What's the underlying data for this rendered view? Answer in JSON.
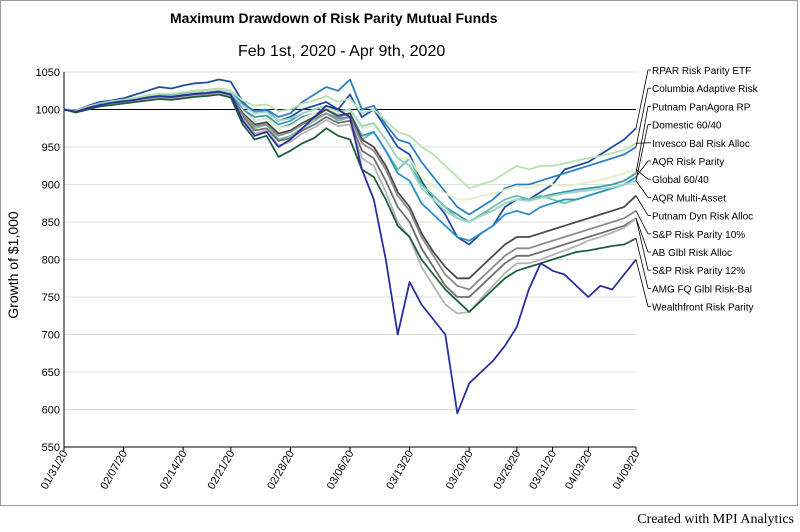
{
  "footer": {
    "credit": "Created with MPI Analytics"
  },
  "chart_data": {
    "type": "line",
    "title": "Maximum Drawdown of Risk Parity Mutual Funds",
    "subtitle": "Feb 1st, 2020 - Apr 9th, 2020",
    "xlabel": "",
    "ylabel": "Growth of $1,000",
    "ylim": [
      550,
      1050
    ],
    "yticks": [
      550,
      600,
      650,
      700,
      750,
      800,
      850,
      900,
      950,
      1000,
      1050
    ],
    "reference_line": 1000,
    "grid": "horizontal",
    "legend_placement": "right",
    "x": [
      "01/31/20",
      "02/03/20",
      "02/04/20",
      "02/05/20",
      "02/06/20",
      "02/07/20",
      "02/10/20",
      "02/11/20",
      "02/12/20",
      "02/13/20",
      "02/14/20",
      "02/18/20",
      "02/19/20",
      "02/20/20",
      "02/21/20",
      "02/24/20",
      "02/25/20",
      "02/26/20",
      "02/27/20",
      "02/28/20",
      "03/02/20",
      "03/03/20",
      "03/04/20",
      "03/05/20",
      "03/06/20",
      "03/09/20",
      "03/10/20",
      "03/11/20",
      "03/12/20",
      "03/13/20",
      "03/16/20",
      "03/17/20",
      "03/18/20",
      "03/19/20",
      "03/20/20",
      "03/23/20",
      "03/24/20",
      "03/25/20",
      "03/26/20",
      "03/27/20",
      "03/30/20",
      "03/31/20",
      "04/01/20",
      "04/02/20",
      "04/03/20",
      "04/06/20",
      "04/07/20",
      "04/08/20",
      "04/09/20"
    ],
    "xtick_labels": [
      "01/31/20",
      "02/07/20",
      "02/14/20",
      "02/21/20",
      "02/28/20",
      "03/06/20",
      "03/13/20",
      "03/20/20",
      "03/26/20",
      "03/31/20",
      "04/03/20",
      "04/09/20"
    ],
    "series": [
      {
        "name": "RPAR Risk Parity ETF",
        "color": "#1f4e9c",
        "values": [
          1000,
          999,
          1005,
          1010,
          1012,
          1015,
          1020,
          1025,
          1030,
          1028,
          1032,
          1035,
          1036,
          1040,
          1037,
          1010,
          995,
          998,
          985,
          990,
          1000,
          1005,
          1010,
          1000,
          1020,
          990,
          1000,
          975,
          950,
          940,
          905,
          880,
          860,
          830,
          820,
          835,
          845,
          870,
          880,
          880,
          890,
          900,
          920,
          925,
          930,
          940,
          950,
          960,
          975
        ]
      },
      {
        "name": "Columbia Adaptive Risk",
        "color": "#2a7fc0",
        "values": [
          1000,
          998,
          1002,
          1008,
          1010,
          1012,
          1015,
          1018,
          1020,
          1019,
          1022,
          1025,
          1026,
          1028,
          1025,
          1008,
          998,
          1000,
          990,
          995,
          1010,
          1020,
          1030,
          1025,
          1040,
          1000,
          1005,
          980,
          960,
          955,
          930,
          910,
          890,
          870,
          860,
          870,
          880,
          895,
          900,
          900,
          905,
          910,
          915,
          920,
          925,
          930,
          935,
          940,
          950
        ]
      },
      {
        "name": "Putnam PanAgora RP",
        "color": "#3e9aa8",
        "values": [
          1000,
          998,
          1003,
          1006,
          1008,
          1010,
          1012,
          1015,
          1016,
          1016,
          1018,
          1020,
          1020,
          1022,
          1018,
          1000,
          990,
          992,
          980,
          985,
          995,
          1000,
          1005,
          995,
          1000,
          975,
          980,
          960,
          935,
          925,
          900,
          885,
          870,
          860,
          850,
          860,
          865,
          875,
          880,
          880,
          883,
          887,
          890,
          893,
          895,
          897,
          900,
          905,
          915
        ]
      },
      {
        "name": "Domestic 60/40",
        "color": "#6cc3a3",
        "values": [
          1000,
          997,
          1002,
          1007,
          1010,
          1012,
          1014,
          1017,
          1019,
          1018,
          1020,
          1022,
          1023,
          1024,
          1020,
          995,
          975,
          980,
          960,
          965,
          975,
          985,
          995,
          985,
          990,
          960,
          970,
          945,
          920,
          935,
          900,
          885,
          870,
          855,
          850,
          860,
          870,
          880,
          885,
          880,
          885,
          880,
          875,
          880,
          885,
          890,
          895,
          900,
          905
        ]
      },
      {
        "name": "Invesco Bal Risk Alloc",
        "color": "#b8e1b0",
        "values": [
          1000,
          999,
          1004,
          1008,
          1011,
          1013,
          1016,
          1019,
          1021,
          1021,
          1023,
          1025,
          1026,
          1028,
          1025,
          1012,
          1005,
          1007,
          998,
          1000,
          1008,
          1012,
          1018,
          1010,
          1015,
          995,
          1000,
          985,
          970,
          965,
          950,
          940,
          925,
          910,
          895,
          900,
          905,
          915,
          925,
          920,
          925,
          925,
          928,
          932,
          935,
          938,
          942,
          946,
          955
        ]
      },
      {
        "name": "AQR Risk Parity",
        "color": "#2f8fc8",
        "values": [
          1000,
          998,
          1003,
          1007,
          1009,
          1011,
          1013,
          1016,
          1018,
          1017,
          1019,
          1021,
          1022,
          1024,
          1021,
          1000,
          985,
          988,
          975,
          980,
          990,
          995,
          1000,
          990,
          995,
          965,
          970,
          945,
          915,
          905,
          875,
          860,
          845,
          830,
          825,
          835,
          845,
          860,
          865,
          860,
          870,
          875,
          880,
          880,
          885,
          890,
          895,
          900,
          910
        ]
      },
      {
        "name": "Global 60/40",
        "color": "#e3f0c4",
        "values": [
          1000,
          998,
          1002,
          1006,
          1008,
          1010,
          1012,
          1014,
          1016,
          1015,
          1017,
          1019,
          1020,
          1021,
          1017,
          998,
          985,
          988,
          975,
          978,
          988,
          995,
          1003,
          995,
          1000,
          975,
          980,
          960,
          935,
          935,
          910,
          898,
          888,
          880,
          880,
          885,
          888,
          893,
          898,
          895,
          900,
          900,
          898,
          900,
          903,
          906,
          910,
          915,
          920
        ]
      },
      {
        "name": "AQR Multi-Asset",
        "color": "#9fd6c8",
        "values": [
          1000,
          998,
          1003,
          1007,
          1010,
          1012,
          1014,
          1017,
          1019,
          1018,
          1020,
          1022,
          1023,
          1025,
          1022,
          1005,
          995,
          997,
          985,
          988,
          995,
          1000,
          1005,
          998,
          1000,
          978,
          982,
          960,
          935,
          925,
          895,
          880,
          865,
          855,
          850,
          858,
          865,
          875,
          880,
          878,
          882,
          885,
          888,
          890,
          892,
          894,
          896,
          900,
          905
        ]
      },
      {
        "name": "Putnam Dyn Risk Alloc",
        "color": "#4a4a4a",
        "values": [
          1000,
          997,
          1001,
          1005,
          1008,
          1010,
          1012,
          1015,
          1017,
          1016,
          1018,
          1020,
          1021,
          1023,
          1019,
          995,
          980,
          983,
          968,
          972,
          982,
          990,
          1000,
          992,
          995,
          960,
          950,
          925,
          890,
          870,
          835,
          810,
          790,
          775,
          775,
          790,
          805,
          820,
          830,
          830,
          835,
          840,
          845,
          850,
          855,
          860,
          865,
          870,
          885
        ]
      },
      {
        "name": "S&P Risk Parity 10%",
        "color": "#8c8c8c",
        "values": [
          1000,
          997,
          1001,
          1005,
          1007,
          1009,
          1011,
          1014,
          1016,
          1015,
          1017,
          1019,
          1020,
          1022,
          1018,
          993,
          978,
          980,
          965,
          970,
          980,
          988,
          995,
          988,
          990,
          955,
          945,
          920,
          885,
          865,
          830,
          805,
          780,
          765,
          760,
          775,
          790,
          805,
          815,
          815,
          820,
          825,
          830,
          835,
          840,
          845,
          850,
          855,
          865
        ]
      },
      {
        "name": "AB Glbl Risk Alloc",
        "color": "#6e6e6e",
        "values": [
          1000,
          997,
          1001,
          1005,
          1007,
          1010,
          1012,
          1014,
          1016,
          1015,
          1017,
          1019,
          1020,
          1022,
          1018,
          990,
          972,
          975,
          958,
          962,
          972,
          980,
          990,
          982,
          985,
          945,
          935,
          905,
          870,
          850,
          815,
          790,
          765,
          750,
          750,
          765,
          780,
          795,
          805,
          805,
          810,
          815,
          820,
          825,
          830,
          835,
          840,
          845,
          855
        ]
      },
      {
        "name": "S&P Risk Parity 12%",
        "color": "#b4b4b4",
        "values": [
          1000,
          997,
          1001,
          1005,
          1007,
          1009,
          1011,
          1013,
          1015,
          1014,
          1016,
          1018,
          1019,
          1021,
          1017,
          988,
          968,
          972,
          952,
          957,
          968,
          976,
          986,
          978,
          980,
          935,
          925,
          890,
          850,
          830,
          790,
          765,
          740,
          728,
          730,
          748,
          765,
          782,
          795,
          795,
          800,
          806,
          812,
          818,
          825,
          830,
          836,
          842,
          855
        ]
      },
      {
        "name": "AMG FQ Glbl Risk-Bal",
        "color": "#1f5e3c",
        "values": [
          1000,
          996,
          1000,
          1004,
          1006,
          1008,
          1010,
          1012,
          1014,
          1013,
          1015,
          1017,
          1018,
          1020,
          1016,
          980,
          960,
          965,
          937,
          945,
          955,
          962,
          975,
          965,
          960,
          920,
          910,
          880,
          845,
          830,
          800,
          780,
          760,
          745,
          730,
          745,
          760,
          775,
          785,
          790,
          795,
          800,
          805,
          810,
          812,
          815,
          818,
          820,
          828
        ]
      },
      {
        "name": "Wealthfront Risk Parity",
        "color": "#2b2f9a",
        "values": [
          1000,
          997,
          1002,
          1006,
          1009,
          1011,
          1013,
          1016,
          1018,
          1017,
          1019,
          1021,
          1022,
          1024,
          1020,
          985,
          965,
          970,
          950,
          960,
          975,
          990,
          1005,
          1000,
          990,
          920,
          880,
          800,
          700,
          770,
          740,
          720,
          700,
          595,
          635,
          650,
          665,
          685,
          710,
          760,
          795,
          785,
          780,
          765,
          750,
          765,
          760,
          780,
          800
        ]
      }
    ]
  }
}
